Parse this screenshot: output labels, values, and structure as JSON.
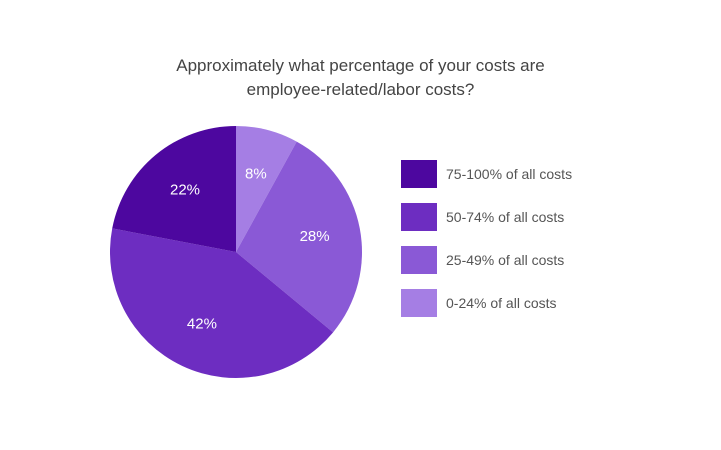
{
  "chart_data": {
    "type": "pie",
    "title": "Approximately what percentage of your costs are employee-related/labor costs?",
    "title_lines": [
      "Approximately what percentage of your costs are",
      "employee-related/labor costs?"
    ],
    "legend_position": "right",
    "slices": [
      {
        "name": "0-24% of all costs",
        "value": 8,
        "label": "8%",
        "color": "#a57ee4"
      },
      {
        "name": "25-49% of all costs",
        "value": 28,
        "label": "28%",
        "color": "#8a59d6"
      },
      {
        "name": "50-74% of all costs",
        "value": 42,
        "label": "42%",
        "color": "#6d2dc1"
      },
      {
        "name": "75-100% of all costs",
        "value": 22,
        "label": "22%",
        "color": "#4d079f"
      }
    ],
    "legend": [
      {
        "label": "75-100% of all costs",
        "color": "#4d079f"
      },
      {
        "label": "50-74% of all costs",
        "color": "#6d2dc1"
      },
      {
        "label": "25-49% of all costs",
        "color": "#8a59d6"
      },
      {
        "label": "0-24% of all costs",
        "color": "#a57ee4"
      }
    ]
  }
}
